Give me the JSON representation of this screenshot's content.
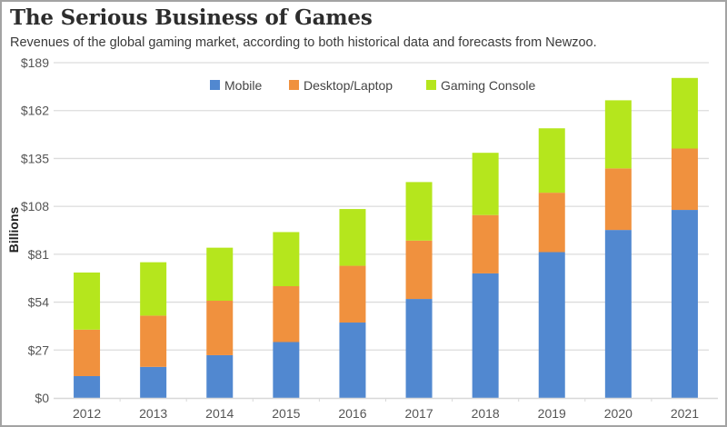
{
  "header": {
    "title": "The Serious Business of Games",
    "subtitle": "Revenues of the global gaming market, according to both historical data and forecasts from Newzoo."
  },
  "chart_data": {
    "type": "bar",
    "stacked": true,
    "title": "The Serious Business of Games",
    "subtitle": "Revenues of the global gaming market, according to both historical data and forecasts from Newzoo.",
    "xlabel": "",
    "ylabel": "Billions",
    "ylim": [
      0,
      189
    ],
    "yticks": [
      0,
      27,
      54,
      81,
      108,
      135,
      162,
      189
    ],
    "ytick_labels": [
      "$0",
      "$27",
      "$54",
      "$81",
      "$108",
      "$135",
      "$162",
      "$189"
    ],
    "grid": true,
    "legend_position": "top-center",
    "categories": [
      "2012",
      "2013",
      "2014",
      "2015",
      "2016",
      "2017",
      "2018",
      "2019",
      "2020",
      "2021"
    ],
    "series": [
      {
        "name": "Mobile",
        "color": "#5188d0",
        "values": [
          12.3,
          17.5,
          24.1,
          31.5,
          42.5,
          55.8,
          70.2,
          82.2,
          94.7,
          106.0
        ]
      },
      {
        "name": "Desktop/Laptop",
        "color": "#f0913e",
        "values": [
          26.2,
          28.9,
          30.7,
          31.5,
          32.0,
          32.9,
          32.9,
          33.5,
          34.7,
          34.6
        ]
      },
      {
        "name": "Gaming Console",
        "color": "#b5e61d",
        "values": [
          32.2,
          30.1,
          29.9,
          30.5,
          32.0,
          33.0,
          35.1,
          36.3,
          38.4,
          39.8
        ]
      }
    ],
    "totals": [
      70.7,
      76.5,
      84.7,
      93.5,
      106.5,
      121.7,
      138.2,
      152.0,
      167.8,
      180.4
    ]
  }
}
